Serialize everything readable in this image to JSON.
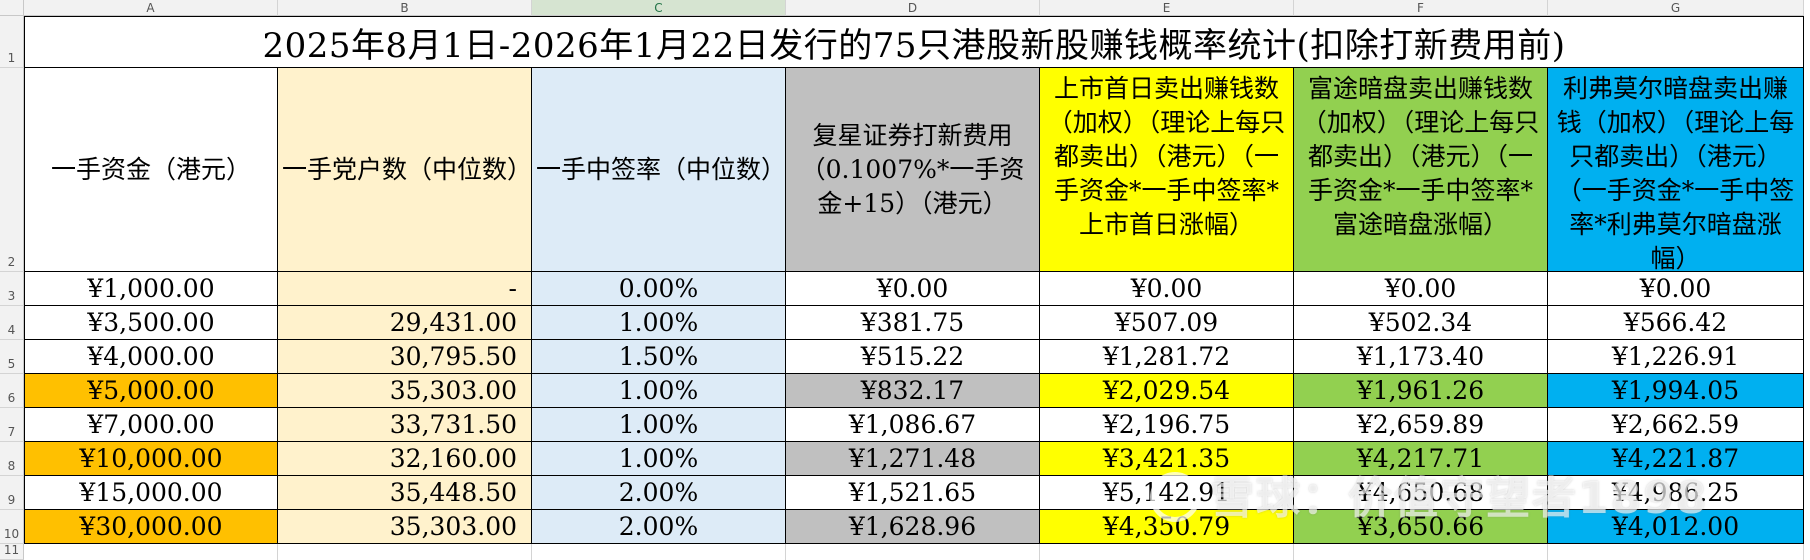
{
  "colors": {
    "beige": "#fff2cc",
    "lightblue": "#ddebf7",
    "gray": "#c0c0c0",
    "yellow": "#ffff00",
    "green": "#92d050",
    "cyan": "#00b0f0",
    "orange": "#ffc000"
  },
  "columns": [
    "A",
    "B",
    "C",
    "D",
    "E",
    "F",
    "G"
  ],
  "rows": [
    "1",
    "2",
    "3",
    "4",
    "5",
    "6",
    "7",
    "8",
    "9",
    "10",
    "11"
  ],
  "title": "2025年8月1日-2026年1月22日发行的75只港股新股赚钱概率统计(扣除打新费用前)",
  "headers": [
    "一手资金（港元）",
    "一手党户数（中位数）",
    "一手中签率（中位数）",
    "复星证券打新费用（0.1007%*一手资金+15）（港元）",
    "上市首日卖出赚钱数（加权）（理论上每只都卖出）（港元）（一手资金*一手中签率*上市首日涨幅）",
    "富途暗盘卖出赚钱数（加权）（理论上每只都卖出）（港元）（一手资金*一手中签率*富途暗盘涨幅）",
    "利弗莫尔暗盘卖出赚钱（加权）（理论上每只都卖出）（港元）（一手资金*一手中签率*利弗莫尔暗盘涨幅）"
  ],
  "table": [
    [
      "¥1,000.00",
      "-",
      "0.00%",
      "¥0.00",
      "¥0.00",
      "¥0.00",
      "¥0.00"
    ],
    [
      "¥3,500.00",
      "29,431.00",
      "1.00%",
      "¥381.75",
      "¥507.09",
      "¥502.34",
      "¥566.42"
    ],
    [
      "¥4,000.00",
      "30,795.50",
      "1.50%",
      "¥515.22",
      "¥1,281.72",
      "¥1,173.40",
      "¥1,226.91"
    ],
    [
      "¥5,000.00",
      "35,303.00",
      "1.00%",
      "¥832.17",
      "¥2,029.54",
      "¥1,961.26",
      "¥1,994.05"
    ],
    [
      "¥7,000.00",
      "33,731.50",
      "1.00%",
      "¥1,086.67",
      "¥2,196.75",
      "¥2,659.89",
      "¥2,662.59"
    ],
    [
      "¥10,000.00",
      "32,160.00",
      "1.00%",
      "¥1,271.48",
      "¥3,421.35",
      "¥4,217.71",
      "¥4,221.87"
    ],
    [
      "¥15,000.00",
      "35,448.50",
      "2.00%",
      "¥1,521.65",
      "¥5,142.91",
      "¥4,650.68",
      "¥4,986.25"
    ],
    [
      "¥30,000.00",
      "35,303.00",
      "2.00%",
      "¥1,628.96",
      "¥4,350.79",
      "¥3,650.66",
      "¥4,012.00"
    ]
  ],
  "highlight_rows": [
    3,
    5,
    7
  ],
  "watermark": "雪球：价值守望者1898"
}
